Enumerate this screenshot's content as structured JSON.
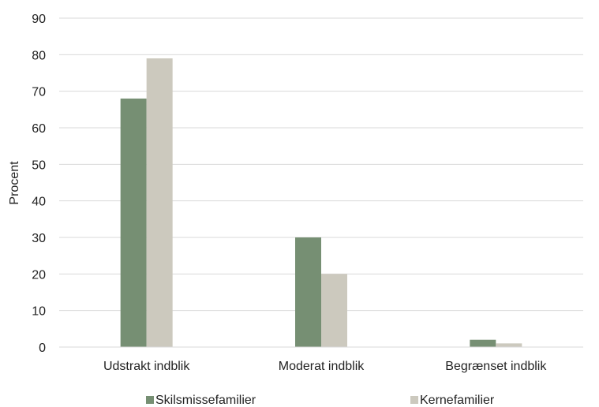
{
  "chart_data": {
    "type": "bar",
    "ylabel": "Procent",
    "xlabel": "",
    "categories": [
      "Udstrakt indblik",
      "Moderat indblik",
      "Begrænset indblik"
    ],
    "series": [
      {
        "name": "Skilsmissefamilier",
        "values": [
          68,
          30,
          2
        ],
        "color": "#768f73"
      },
      {
        "name": "Kernefamilier",
        "values": [
          79,
          20,
          1
        ],
        "color": "#ccc9be"
      }
    ],
    "ylim": [
      0,
      90
    ],
    "yticks": [
      0,
      10,
      20,
      30,
      40,
      50,
      60,
      70,
      80,
      90
    ],
    "grid": true,
    "legend_position": "bottom"
  }
}
